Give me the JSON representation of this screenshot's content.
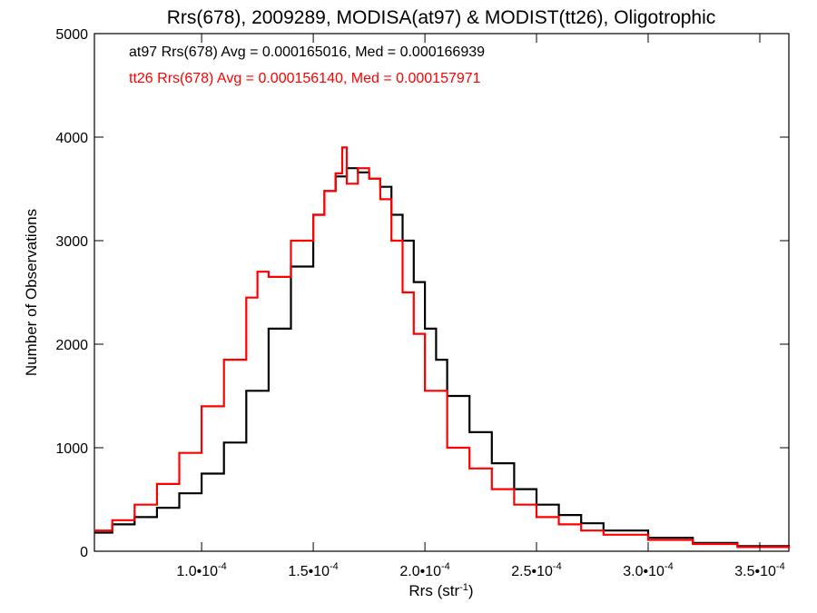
{
  "chart_data": {
    "type": "line",
    "title": "Rrs(678), 2009289, MODISA(at97) & MODIST(tt26), Oligotrophic",
    "xlabel": "Rrs (str",
    "xlabel_sup": "-1",
    "xlabel_close": ")",
    "ylabel": "Number of Observations",
    "xlim": [
      5.2e-05,
      0.000363
    ],
    "ylim": [
      0,
      5000
    ],
    "grid": false,
    "legend_position": "top-left",
    "x_tick_values": [
      0.0001,
      0.00015,
      0.0002,
      0.00025,
      0.0003,
      0.00035
    ],
    "x_tick_labels": [
      "1.0•10",
      "1.5•10",
      "2.0•10",
      "2.5•10",
      "3.0•10",
      "3.5•10"
    ],
    "x_tick_exponent": "-4",
    "y_tick_values": [
      0,
      1000,
      2000,
      3000,
      4000,
      5000
    ],
    "y_tick_labels": [
      "0",
      "1000",
      "2000",
      "3000",
      "4000",
      "5000"
    ],
    "series": [
      {
        "name": "at97",
        "legend": "at97 Rrs(678) Avg = 0.000165016, Med = 0.000166939",
        "color": "#000000",
        "x": [
          5.2e-05,
          6e-05,
          7e-05,
          8e-05,
          9e-05,
          0.0001,
          0.00011,
          0.00012,
          0.00013,
          0.00014,
          0.00015,
          0.000155,
          0.00016,
          0.000165,
          0.00017,
          0.000175,
          0.00018,
          0.000185,
          0.00019,
          0.000195,
          0.0002,
          0.000205,
          0.00021,
          0.00022,
          0.00023,
          0.00024,
          0.00025,
          0.00026,
          0.00027,
          0.00028,
          0.0003,
          0.00032,
          0.00034,
          0.000363
        ],
        "y": [
          180,
          260,
          330,
          420,
          560,
          750,
          1050,
          1550,
          2150,
          2750,
          3250,
          3480,
          3620,
          3700,
          3660,
          3600,
          3520,
          3250,
          3000,
          2600,
          2150,
          1850,
          1500,
          1150,
          850,
          600,
          450,
          350,
          270,
          200,
          130,
          80,
          50,
          30
        ]
      },
      {
        "name": "tt26",
        "legend": "tt26 Rrs(678) Avg = 0.000156140, Med = 0.000157971",
        "color": "#ff0000",
        "x": [
          5.2e-05,
          6e-05,
          7e-05,
          8e-05,
          9e-05,
          0.0001,
          0.00011,
          0.00012,
          0.000125,
          0.00013,
          0.00014,
          0.00015,
          0.000155,
          0.00016,
          0.000163,
          0.000165,
          0.00017,
          0.000175,
          0.00018,
          0.000185,
          0.00019,
          0.000195,
          0.0002,
          0.00021,
          0.00022,
          0.00023,
          0.00024,
          0.00025,
          0.00026,
          0.00027,
          0.00028,
          0.0003,
          0.00032,
          0.00034,
          0.000363
        ],
        "y": [
          200,
          300,
          450,
          650,
          950,
          1400,
          1850,
          2450,
          2700,
          2650,
          3000,
          3250,
          3480,
          3650,
          3900,
          3550,
          3700,
          3600,
          3400,
          3000,
          2500,
          2100,
          1550,
          1000,
          800,
          600,
          450,
          330,
          260,
          200,
          160,
          110,
          70,
          40,
          25
        ]
      }
    ]
  }
}
